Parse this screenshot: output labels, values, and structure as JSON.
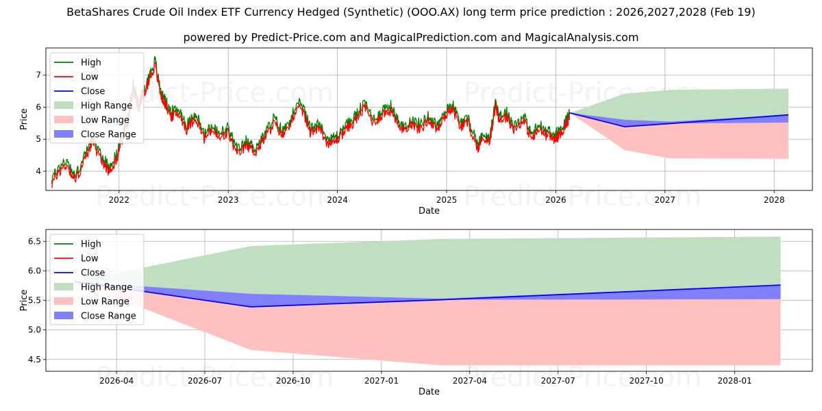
{
  "title": "BetaShares Crude Oil Index ETF Currency Hedged (Synthetic) (OOO.AX) long term price prediction : 2026,2027,2028 (Feb 19)",
  "subtitle": "powered by Predict-Price.com and MagicalPrediction.com and MagicalAnalysis.com",
  "watermark": "Predict-Price.com",
  "colors": {
    "high": "#008000",
    "low": "#ff0000",
    "close": "#0000ff",
    "high_range": "#c0dfc0",
    "low_range": "#ffc0c0",
    "close_range": "#8080ff"
  },
  "chart_data": [
    {
      "type": "line",
      "name": "long-term",
      "title": "",
      "xlabel": "Date",
      "ylabel": "Price",
      "x_range": [
        2021.33,
        2028.35
      ],
      "ylim": [
        3.4,
        7.85
      ],
      "x_ticks": [
        {
          "v": 2022.0,
          "label": "2022"
        },
        {
          "v": 2023.0,
          "label": "2023"
        },
        {
          "v": 2024.0,
          "label": "2024"
        },
        {
          "v": 2025.0,
          "label": "2025"
        },
        {
          "v": 2026.0,
          "label": "2026"
        },
        {
          "v": 2027.0,
          "label": "2027"
        },
        {
          "v": 2028.0,
          "label": "2028"
        }
      ],
      "y_ticks": [
        4,
        5,
        6,
        7
      ],
      "legend": [
        "High",
        "Low",
        "Close",
        "High Range",
        "Low Range",
        "Close Range"
      ],
      "legend_position": "upper-left",
      "grid": true,
      "history": {
        "x": [
          2021.38,
          2021.45,
          2021.52,
          2021.6,
          2021.68,
          2021.75,
          2021.82,
          2021.9,
          2021.97,
          2022.02,
          2022.08,
          2022.13,
          2022.18,
          2022.23,
          2022.28,
          2022.33,
          2022.38,
          2022.42,
          2022.48,
          2022.55,
          2022.62,
          2022.7,
          2022.78,
          2022.85,
          2022.92,
          2023.0,
          2023.08,
          2023.17,
          2023.25,
          2023.33,
          2023.42,
          2023.5,
          2023.58,
          2023.67,
          2023.75,
          2023.83,
          2023.92,
          2024.0,
          2024.08,
          2024.17,
          2024.25,
          2024.33,
          2024.42,
          2024.5,
          2024.58,
          2024.67,
          2024.75,
          2024.83,
          2024.92,
          2025.0,
          2025.05,
          2025.12,
          2025.2,
          2025.28,
          2025.33,
          2025.4,
          2025.45,
          2025.48,
          2025.55,
          2025.62,
          2025.7,
          2025.78,
          2025.85,
          2025.92,
          2026.0,
          2026.05,
          2026.1,
          2026.13
        ],
        "low": [
          3.6,
          4.0,
          4.2,
          3.7,
          4.3,
          4.9,
          4.5,
          4.0,
          4.3,
          4.9,
          5.5,
          6.6,
          6.0,
          6.4,
          6.9,
          7.3,
          6.4,
          6.1,
          5.7,
          5.8,
          5.3,
          5.7,
          5.0,
          5.3,
          5.0,
          5.2,
          4.5,
          4.8,
          4.6,
          5.0,
          5.5,
          5.1,
          5.6,
          6.0,
          5.2,
          5.4,
          4.8,
          5.0,
          5.3,
          5.6,
          6.0,
          5.5,
          5.8,
          5.9,
          5.2,
          5.5,
          5.3,
          5.6,
          5.3,
          5.8,
          6.0,
          5.4,
          5.5,
          4.7,
          5.0,
          5.0,
          6.1,
          5.6,
          5.7,
          5.3,
          5.6,
          5.0,
          5.3,
          5.1,
          5.0,
          5.2,
          5.5,
          5.7
        ]
      },
      "forecast": {
        "x": [
          2026.13,
          2026.63,
          2027.05,
          2028.13
        ],
        "close": [
          5.82,
          5.39,
          5.49,
          5.76
        ],
        "high_range": [
          5.82,
          6.42,
          6.54,
          6.58
        ],
        "low_range": [
          5.82,
          4.66,
          4.4,
          4.39
        ],
        "close_range_upper": [
          5.82,
          5.61,
          5.55,
          5.76
        ],
        "close_range_lower": [
          5.82,
          5.39,
          5.49,
          5.52
        ]
      }
    },
    {
      "type": "line",
      "name": "forecast-zoom",
      "title": "",
      "xlabel": "Date",
      "ylabel": "Price",
      "x_range": [
        2026.05,
        2028.22
      ],
      "ylim": [
        4.3,
        6.7
      ],
      "x_ticks": [
        {
          "v": 2026.25,
          "label": "2026-04"
        },
        {
          "v": 2026.5,
          "label": "2026-07"
        },
        {
          "v": 2026.75,
          "label": "2026-10"
        },
        {
          "v": 2027.0,
          "label": "2027-01"
        },
        {
          "v": 2027.25,
          "label": "2027-04"
        },
        {
          "v": 2027.5,
          "label": "2027-07"
        },
        {
          "v": 2027.75,
          "label": "2027-10"
        },
        {
          "v": 2028.0,
          "label": "2028-01"
        }
      ],
      "y_ticks": [
        4.5,
        5.0,
        5.5,
        6.0,
        6.5
      ],
      "legend": [
        "High",
        "Low",
        "Close",
        "High Range",
        "Low Range",
        "Close Range"
      ],
      "legend_position": "upper-left",
      "grid": true,
      "forecast": {
        "x": [
          2026.13,
          2026.63,
          2027.17,
          2028.13
        ],
        "close": [
          5.82,
          5.39,
          5.51,
          5.76
        ],
        "high_range": [
          5.82,
          6.42,
          6.54,
          6.58
        ],
        "low_range": [
          5.82,
          4.66,
          4.4,
          4.4
        ],
        "close_range_upper": [
          5.82,
          5.61,
          5.53,
          5.76
        ],
        "close_range_lower": [
          5.82,
          5.39,
          5.51,
          5.52
        ]
      }
    }
  ]
}
